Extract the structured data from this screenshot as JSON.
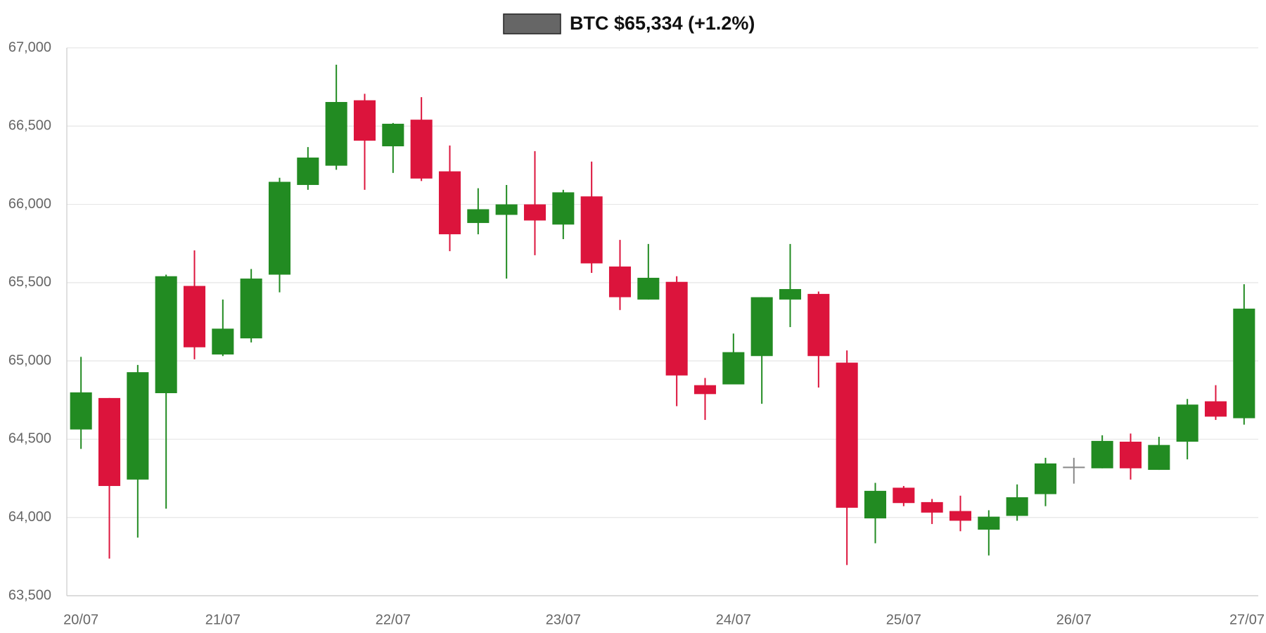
{
  "chart_data": {
    "type": "candlestick",
    "series": [
      {
        "name": "BTC $65,334 (+1.2%)",
        "color": "#666666",
        "up_color": "#228b22",
        "down_color": "#dc143c",
        "unchanged_color": "#888888",
        "open": [
          64562,
          64763,
          64242,
          64794,
          65479,
          65041,
          65144,
          65551,
          66124,
          66247,
          66665,
          66371,
          66541,
          66211,
          65881,
          65933,
          66000,
          65871,
          66051,
          65603,
          65392,
          65505,
          64845,
          64850,
          65031,
          65392,
          65428,
          64989,
          63994,
          64190,
          64098,
          64041,
          63922,
          64010,
          64149,
          64320,
          64314,
          64484,
          64304,
          64484,
          64742,
          64634
        ],
        "high": [
          65026,
          64763,
          64974,
          65551,
          65706,
          65392,
          65587,
          66170,
          66366,
          66892,
          66706,
          66520,
          66685,
          66376,
          66103,
          66124,
          66340,
          66093,
          66273,
          65773,
          65747,
          65541,
          64891,
          65175,
          65407,
          65747,
          65443,
          65067,
          64221,
          64201,
          64118,
          64139,
          64046,
          64211,
          64381,
          64381,
          64525,
          64536,
          64515,
          64757,
          64845,
          65490
        ],
        "low": [
          64438,
          63737,
          63871,
          64056,
          65010,
          65031,
          65118,
          65438,
          66093,
          66221,
          66093,
          66201,
          66149,
          65701,
          65809,
          65526,
          65675,
          65778,
          65562,
          65325,
          65392,
          64711,
          64623,
          64850,
          64726,
          65216,
          64830,
          63696,
          63835,
          64072,
          63958,
          63912,
          63757,
          63979,
          64072,
          64216,
          64314,
          64242,
          64304,
          64371,
          64623,
          64593
        ],
        "close": [
          64799,
          64201,
          64928,
          65541,
          65087,
          65206,
          65526,
          66144,
          66299,
          66654,
          66407,
          66515,
          66165,
          65809,
          65969,
          66000,
          65897,
          66077,
          65623,
          65407,
          65531,
          64907,
          64788,
          65056,
          65407,
          65459,
          65031,
          64062,
          64170,
          64092,
          64031,
          63979,
          64005,
          64129,
          64345,
          64320,
          64489,
          64314,
          64463,
          64721,
          64644,
          65334
        ]
      }
    ],
    "categories": [
      "20/07",
      null,
      null,
      null,
      null,
      "21/07",
      null,
      null,
      null,
      null,
      null,
      "22/07",
      null,
      null,
      null,
      null,
      null,
      "23/07",
      null,
      null,
      null,
      null,
      null,
      "24/07",
      null,
      null,
      null,
      null,
      null,
      "25/07",
      null,
      null,
      null,
      null,
      null,
      "26/07",
      null,
      null,
      null,
      null,
      null,
      "27/07"
    ],
    "ylim": [
      63500,
      67000
    ],
    "yticks": [
      {
        "value": 63500,
        "label": "63,500"
      },
      {
        "value": 64000,
        "label": "64,000"
      },
      {
        "value": 64500,
        "label": "64,500"
      },
      {
        "value": 65000,
        "label": "65,000"
      },
      {
        "value": 65500,
        "label": "65,500"
      },
      {
        "value": 66000,
        "label": "66,000"
      },
      {
        "value": 66500,
        "label": "66,500"
      },
      {
        "value": 67000,
        "label": "67,000"
      }
    ],
    "grid": true,
    "legend": "top"
  }
}
